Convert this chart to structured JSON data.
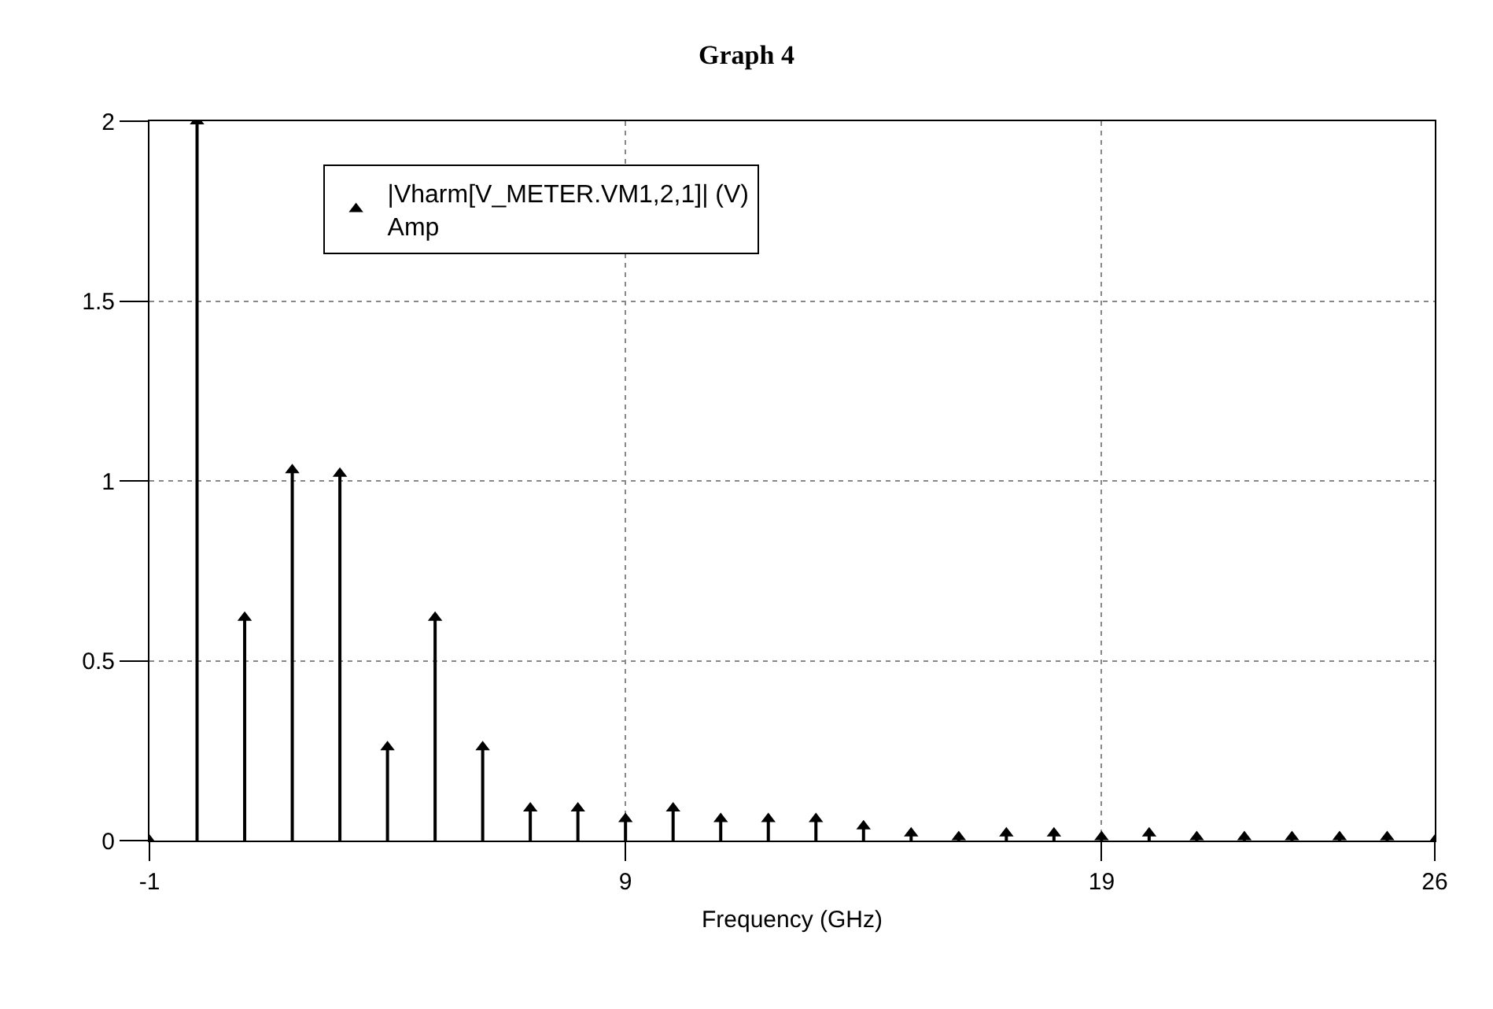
{
  "chart_data": {
    "type": "lollipop",
    "title": "Graph 4",
    "xlabel": "Frequency (GHz)",
    "x": [
      -1,
      0,
      1,
      2,
      3,
      4,
      5,
      6,
      7,
      8,
      9,
      10,
      11,
      12,
      13,
      14,
      15,
      16,
      17,
      18,
      19,
      20,
      21,
      22,
      23,
      24,
      25,
      26
    ],
    "series": [
      {
        "name": "|Vharm[V_METER.VM1,2,1]| (V)\nAmp",
        "color": "#000000",
        "values": [
          0,
          2,
          0.62,
          1.03,
          1.02,
          0.26,
          0.62,
          0.26,
          0.09,
          0.09,
          0.06,
          0.09,
          0.06,
          0.06,
          0.06,
          0.04,
          0.02,
          0.01,
          0.02,
          0.02,
          0.01,
          0.02,
          0.01,
          0.01,
          0.01,
          0.01,
          0.01,
          0
        ]
      }
    ],
    "xlim": [
      -1,
      26
    ],
    "xticks": [
      -1,
      9,
      19,
      26
    ],
    "ylim": [
      0,
      2
    ],
    "yticks": [
      0,
      0.5,
      1,
      1.5,
      2
    ],
    "grid": true,
    "legend": "top left",
    "marker": "triangle"
  }
}
